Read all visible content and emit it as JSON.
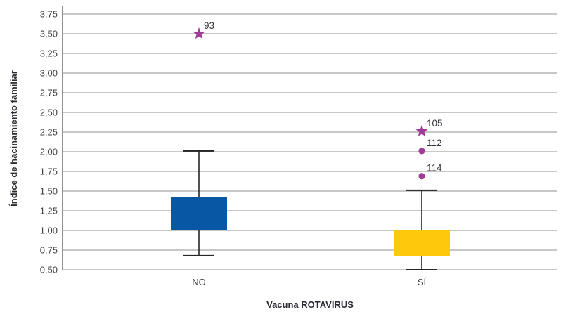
{
  "chart_data": {
    "type": "boxplot",
    "title": "",
    "xlabel": "Vacuna ROTAVIRUS",
    "ylabel": "Índice de hacinamiento familiar",
    "categories": [
      "NO",
      "SÍ"
    ],
    "y_axis": {
      "min": 0.5,
      "max": 3.75,
      "step": 0.25,
      "tick_labels_top_to_bottom": [
        "3,75",
        "3,50",
        "3,25",
        "3,00",
        "2,75",
        "2,50",
        "2,25",
        "2,00",
        "1,75",
        "1,50",
        "1,25",
        "1,00",
        "0,75",
        "0,50"
      ],
      "decimal_separator": "comma"
    },
    "grid": "horizontal",
    "legend": false,
    "boxes": [
      {
        "category": "NO",
        "fill_color": "#0857A4",
        "q1": 1.0,
        "q3": 1.42,
        "whisker_low": 0.68,
        "whisker_high": 2.01,
        "outliers": [
          {
            "value": 3.5,
            "marker": "star",
            "label": "93"
          }
        ]
      },
      {
        "category": "SÍ",
        "fill_color": "#FFC90B",
        "q1": 0.67,
        "q3": 1.0,
        "whisker_low": 0.5,
        "whisker_high": 1.51,
        "outliers": [
          {
            "value": 2.26,
            "marker": "star",
            "label": "105"
          },
          {
            "value": 2.01,
            "marker": "circle",
            "label": "112"
          },
          {
            "value": 1.69,
            "marker": "circle",
            "label": "114"
          }
        ]
      }
    ],
    "colors": {
      "outlier": "#A03C96",
      "grid_line": "#8F8F8F",
      "axis_line": "#595959",
      "whisker": "#262626",
      "text": "#3C3C44"
    }
  }
}
